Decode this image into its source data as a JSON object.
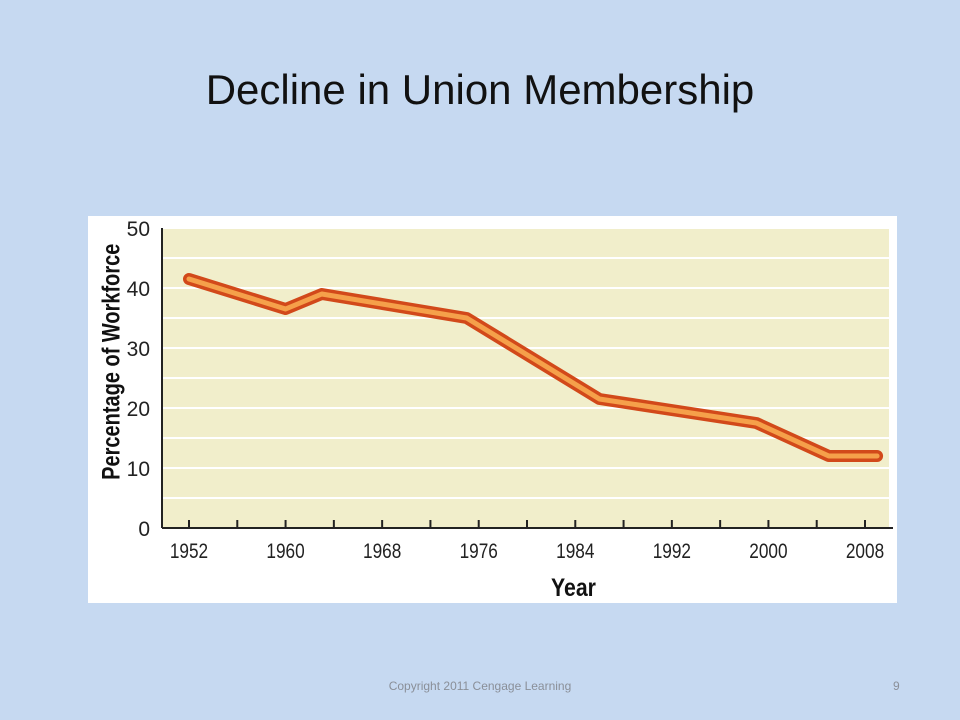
{
  "slide": {
    "title": "Decline in Union Membership",
    "footer": "Copyright 2011 Cengage Learning",
    "page_number": "9"
  },
  "colors": {
    "slide_background": "#c6d9f1",
    "plot_background": "#f1eecb",
    "line_outer": "#d2491a",
    "line_inner": "#f5a04a"
  },
  "chart_data": {
    "type": "line",
    "title": "",
    "xlabel": "Year",
    "ylabel": "Percentage of Workforce",
    "x_ticks": [
      1952,
      1960,
      1968,
      1976,
      1984,
      1992,
      2000,
      2008
    ],
    "y_ticks": [
      0,
      10,
      20,
      30,
      40,
      50
    ],
    "xlim": [
      1952,
      2008
    ],
    "ylim": [
      0,
      50
    ],
    "grid": true,
    "legend": "none",
    "series": [
      {
        "x": [
          1952,
          1960,
          1963,
          1975,
          1986,
          1999,
          2005,
          2009
        ],
        "y": [
          41.5,
          36.5,
          39,
          35,
          21.5,
          17.5,
          12,
          12
        ]
      }
    ]
  }
}
